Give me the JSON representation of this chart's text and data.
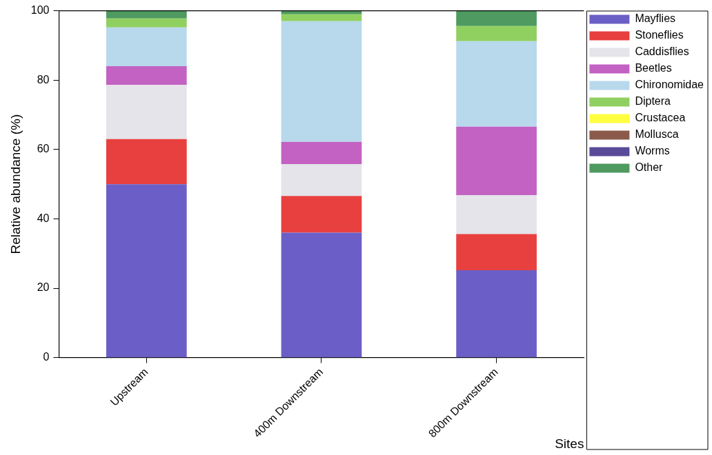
{
  "chart_data": {
    "type": "bar",
    "stacked": true,
    "xlabel": "Sites",
    "ylabel": "Relative abundance (%)",
    "categories": [
      "Upstream",
      "400m Downstream",
      "800m Downstream"
    ],
    "ylim": [
      0,
      100
    ],
    "yticks": [
      0,
      20,
      40,
      60,
      80,
      100
    ],
    "grid": false,
    "legend": "right",
    "series": [
      {
        "name": "Mayflies",
        "color": "#6b5fc7",
        "values": [
          50,
          36,
          25.2
        ]
      },
      {
        "name": "Stoneflies",
        "color": "#e8403f",
        "values": [
          13,
          10.6,
          10.4
        ]
      },
      {
        "name": "Caddisflies",
        "color": "#e4e4ea",
        "values": [
          15.6,
          9.2,
          11.2
        ]
      },
      {
        "name": "Beetles",
        "color": "#c362c3",
        "values": [
          5.4,
          6.4,
          19.8
        ]
      },
      {
        "name": "Chironomidae",
        "color": "#b8d8ec",
        "values": [
          11.2,
          34.8,
          24.6
        ]
      },
      {
        "name": "Diptera",
        "color": "#90d060",
        "values": [
          2.6,
          2,
          4.4
        ]
      },
      {
        "name": "Crustacea",
        "color": "#ffff40",
        "values": [
          0,
          0,
          0
        ]
      },
      {
        "name": "Mollusca",
        "color": "#8b5a4a",
        "values": [
          0,
          0,
          0
        ]
      },
      {
        "name": "Worms",
        "color": "#5a4a9a",
        "values": [
          0,
          0,
          0
        ]
      },
      {
        "name": "Other",
        "color": "#4e9a60",
        "values": [
          2.2,
          1,
          4.4
        ]
      }
    ]
  }
}
